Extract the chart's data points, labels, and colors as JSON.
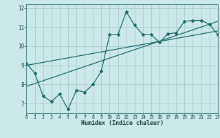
{
  "xlabel": "Humidex (Indice chaleur)",
  "bg_color": "#cce8e8",
  "line_color": "#1a6b6b",
  "grid_color": "#aacccc",
  "xlim": [
    0,
    23
  ],
  "ylim": [
    6.5,
    12.2
  ],
  "yticks": [
    7,
    8,
    9,
    10,
    11,
    12
  ],
  "xticks": [
    0,
    1,
    2,
    3,
    4,
    5,
    6,
    7,
    8,
    9,
    10,
    11,
    12,
    13,
    14,
    15,
    16,
    17,
    18,
    19,
    20,
    21,
    22,
    23
  ],
  "main_x": [
    0,
    1,
    2,
    3,
    4,
    5,
    6,
    7,
    8,
    9,
    10,
    11,
    12,
    13,
    14,
    15,
    16,
    17,
    18,
    19,
    20,
    21,
    22,
    23
  ],
  "main_y": [
    9.1,
    8.6,
    7.4,
    7.1,
    7.5,
    6.7,
    7.7,
    7.6,
    8.0,
    8.7,
    10.6,
    10.6,
    11.8,
    11.1,
    10.6,
    10.6,
    10.2,
    10.65,
    10.7,
    11.3,
    11.35,
    11.35,
    11.15,
    10.6
  ],
  "trend1_x": [
    0,
    23
  ],
  "trend1_y": [
    9.0,
    10.8
  ],
  "trend2_x": [
    0,
    23
  ],
  "trend2_y": [
    7.9,
    11.3
  ]
}
